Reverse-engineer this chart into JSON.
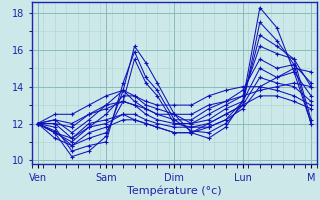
{
  "xlabel": "Température (°c)",
  "bg_color": "#cce8e8",
  "grid_major_color": "#88bbbb",
  "grid_minor_color": "#aad4d4",
  "line_color": "#1111bb",
  "xlim": [
    0,
    100
  ],
  "ylim": [
    9.8,
    18.6
  ],
  "yticks": [
    10,
    11,
    12,
    13,
    14,
    15,
    16,
    17,
    18
  ],
  "day_ticks": [
    2,
    26,
    50,
    74,
    98
  ],
  "day_labels": [
    "Ven",
    "Sam",
    "Dim",
    "Lun",
    "M"
  ],
  "series": [
    [
      2,
      12,
      8,
      11.5,
      14,
      10.2,
      20,
      10.5,
      26,
      11.3,
      32,
      13.8,
      36,
      16.2,
      40,
      15.3,
      44,
      14.2,
      50,
      12.5,
      56,
      11.5,
      62,
      11.2,
      68,
      11.8,
      74,
      13.2,
      80,
      18.3,
      86,
      17.2,
      92,
      14.8,
      98,
      12.0
    ],
    [
      2,
      12,
      8,
      11.8,
      14,
      10.5,
      20,
      10.8,
      26,
      11.0,
      32,
      14.2,
      36,
      15.9,
      40,
      14.5,
      44,
      13.8,
      50,
      12.2,
      56,
      11.6,
      62,
      11.5,
      68,
      12.0,
      74,
      13.0,
      80,
      17.5,
      86,
      16.5,
      92,
      15.2,
      98,
      12.0
    ],
    [
      2,
      12,
      8,
      11.6,
      14,
      10.8,
      20,
      11.2,
      26,
      11.5,
      32,
      13.2,
      36,
      15.5,
      40,
      14.2,
      44,
      13.5,
      50,
      12.0,
      56,
      11.8,
      62,
      11.8,
      68,
      12.2,
      74,
      13.2,
      80,
      16.8,
      86,
      16.2,
      92,
      15.5,
      98,
      12.2
    ],
    [
      2,
      12,
      8,
      12.0,
      14,
      11.2,
      20,
      11.8,
      26,
      12.5,
      32,
      13.5,
      36,
      13.5,
      40,
      13.0,
      44,
      12.8,
      50,
      12.5,
      56,
      12.0,
      62,
      12.5,
      68,
      13.0,
      74,
      13.5,
      80,
      16.2,
      86,
      15.8,
      92,
      15.5,
      98,
      14.0
    ],
    [
      2,
      12,
      8,
      12.2,
      14,
      11.5,
      20,
      12.2,
      26,
      13.0,
      32,
      13.8,
      36,
      13.2,
      40,
      12.8,
      44,
      12.5,
      50,
      12.2,
      56,
      12.2,
      62,
      12.8,
      68,
      13.2,
      74,
      13.8,
      80,
      15.5,
      86,
      15.0,
      92,
      15.2,
      98,
      14.2
    ],
    [
      2,
      12,
      8,
      12.0,
      14,
      11.8,
      20,
      12.5,
      26,
      12.8,
      32,
      13.2,
      36,
      13.0,
      40,
      12.5,
      44,
      12.2,
      50,
      12.0,
      56,
      12.0,
      62,
      12.2,
      68,
      12.8,
      74,
      13.2,
      80,
      15.0,
      86,
      14.5,
      92,
      14.8,
      98,
      13.5
    ],
    [
      2,
      12,
      8,
      11.5,
      14,
      11.0,
      20,
      11.8,
      26,
      12.0,
      32,
      12.5,
      36,
      12.5,
      40,
      12.2,
      44,
      12.0,
      50,
      11.8,
      56,
      11.8,
      62,
      12.0,
      68,
      12.5,
      74,
      13.0,
      80,
      14.5,
      86,
      14.2,
      92,
      14.0,
      98,
      13.2
    ],
    [
      2,
      12,
      8,
      11.2,
      14,
      10.8,
      20,
      11.5,
      26,
      11.8,
      32,
      12.2,
      36,
      12.2,
      40,
      12.0,
      44,
      11.8,
      50,
      11.5,
      56,
      11.5,
      62,
      11.8,
      68,
      12.2,
      74,
      12.8,
      80,
      14.0,
      86,
      13.8,
      92,
      13.5,
      98,
      13.0
    ],
    [
      2,
      12,
      8,
      11.5,
      14,
      11.2,
      20,
      12.0,
      26,
      12.2,
      32,
      12.5,
      36,
      12.2,
      40,
      12.0,
      44,
      11.8,
      50,
      11.5,
      56,
      11.5,
      62,
      12.0,
      68,
      12.5,
      74,
      13.0,
      80,
      13.5,
      86,
      13.5,
      92,
      13.2,
      98,
      12.8
    ],
    [
      2,
      12,
      8,
      12.2,
      14,
      12.0,
      20,
      12.5,
      26,
      13.0,
      32,
      13.2,
      36,
      13.0,
      40,
      12.8,
      44,
      12.5,
      50,
      12.5,
      56,
      12.5,
      62,
      13.0,
      68,
      13.2,
      74,
      13.5,
      80,
      13.8,
      86,
      14.0,
      92,
      14.2,
      98,
      14.0
    ],
    [
      2,
      12,
      8,
      12.5,
      14,
      12.5,
      20,
      13.0,
      26,
      13.5,
      32,
      13.8,
      36,
      13.5,
      40,
      13.2,
      44,
      13.0,
      50,
      13.0,
      56,
      13.0,
      62,
      13.5,
      68,
      13.8,
      74,
      14.0,
      80,
      14.0,
      86,
      14.5,
      92,
      15.0,
      98,
      14.8
    ]
  ]
}
